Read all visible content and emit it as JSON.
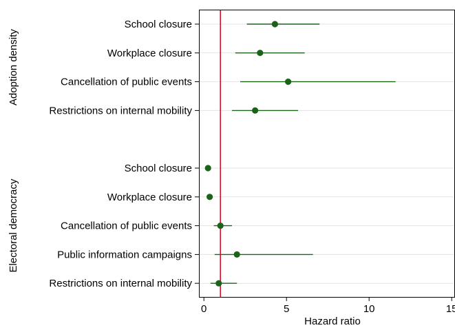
{
  "chart_data": {
    "type": "scatter",
    "subtype": "forest-plot",
    "title": "",
    "xlabel": "Hazard ratio",
    "ylabel": "",
    "xlim": [
      -0.3,
      15.2
    ],
    "xticks": [
      0,
      5,
      10,
      15
    ],
    "xtick_labels": [
      "0",
      "5",
      "10",
      "15"
    ],
    "reference_line": 1,
    "grid": "horizontal",
    "marker_color": "#1a6318",
    "reference_line_color": "#d6112e",
    "groups": [
      {
        "label": "Adoption density",
        "items": [
          {
            "label": "School closure",
            "estimate": 4.3,
            "ci": [
              2.6,
              7.0
            ]
          },
          {
            "label": "Workplace closure",
            "estimate": 3.4,
            "ci": [
              1.9,
              6.1
            ]
          },
          {
            "label": "Cancellation of public events",
            "estimate": 5.1,
            "ci": [
              2.2,
              11.6
            ]
          },
          {
            "label": "Restrictions on internal mobility",
            "estimate": 3.1,
            "ci": [
              1.7,
              5.7
            ]
          }
        ]
      },
      {
        "label": "Electoral democracy",
        "items": [
          {
            "label": "School closure",
            "estimate": 0.25,
            "ci": [
              0.2,
              0.35
            ]
          },
          {
            "label": "Workplace closure",
            "estimate": 0.35,
            "ci": [
              0.28,
              0.45
            ]
          },
          {
            "label": "Cancellation of public events",
            "estimate": 1.0,
            "ci": [
              0.6,
              1.7
            ]
          },
          {
            "label": "Public information campaigns",
            "estimate": 2.0,
            "ci": [
              0.65,
              6.6
            ]
          },
          {
            "label": "Restrictions on internal mobility",
            "estimate": 0.9,
            "ci": [
              0.4,
              2.0
            ]
          }
        ]
      }
    ]
  }
}
